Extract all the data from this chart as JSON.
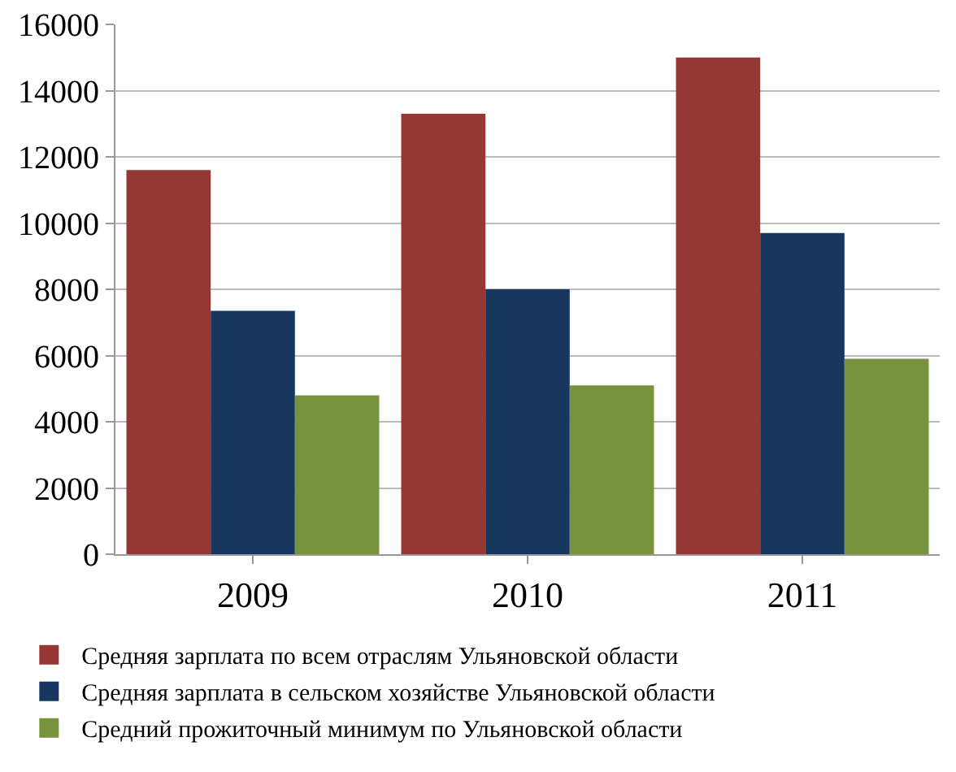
{
  "chart_data": {
    "type": "bar",
    "categories": [
      "2009",
      "2010",
      "2011"
    ],
    "series": [
      {
        "name": "Средняя зарплата по всем отраслям Ульяновской области",
        "color": "#953735",
        "values": [
          11600,
          13300,
          15000
        ]
      },
      {
        "name": "Средняя зарплата в сельском хозяйстве Ульяновской области",
        "color": "#17375e",
        "values": [
          7350,
          8000,
          9700
        ]
      },
      {
        "name": "Средний прожиточный минимум по Ульяновской области",
        "color": "#77933c",
        "values": [
          4800,
          5100,
          5900
        ]
      }
    ],
    "ylim": [
      0,
      16000
    ],
    "yticks": [
      0,
      2000,
      4000,
      6000,
      8000,
      10000,
      12000,
      14000,
      16000
    ],
    "grid": "y",
    "legend": "bottom"
  }
}
